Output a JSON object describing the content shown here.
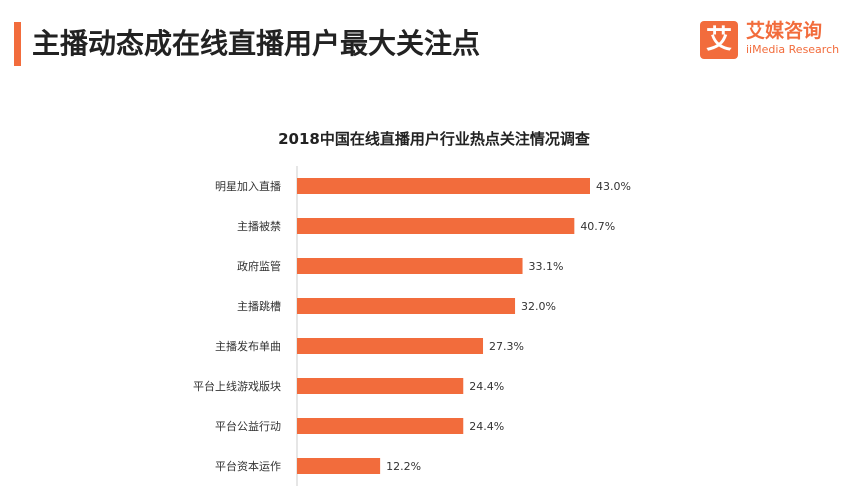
{
  "header": {
    "title": "主播动态成在线直播用户最大关注点"
  },
  "logo": {
    "mark": "艾",
    "name_cn": "艾媒咨询",
    "name_en": "iiMedia Research"
  },
  "colors": {
    "accent": "#f26c3c",
    "bar": "#f26c3c"
  },
  "chart_data": {
    "type": "bar",
    "orientation": "horizontal",
    "title": "2018中国在线直播用户行业热点关注情况调查",
    "categories": [
      "明星加入直播",
      "主播被禁",
      "政府监管",
      "主播跳槽",
      "主播发布单曲",
      "平台上线游戏版块",
      "平台公益行动",
      "平台资本运作"
    ],
    "values": [
      43.0,
      40.7,
      33.1,
      32.0,
      27.3,
      24.4,
      24.4,
      12.2
    ],
    "value_labels": [
      "43.0%",
      "40.7%",
      "33.1%",
      "32.0%",
      "27.3%",
      "24.4%",
      "24.4%",
      "12.2%"
    ],
    "xlim": [
      0,
      43.0
    ],
    "grid": false,
    "legend": "none"
  }
}
